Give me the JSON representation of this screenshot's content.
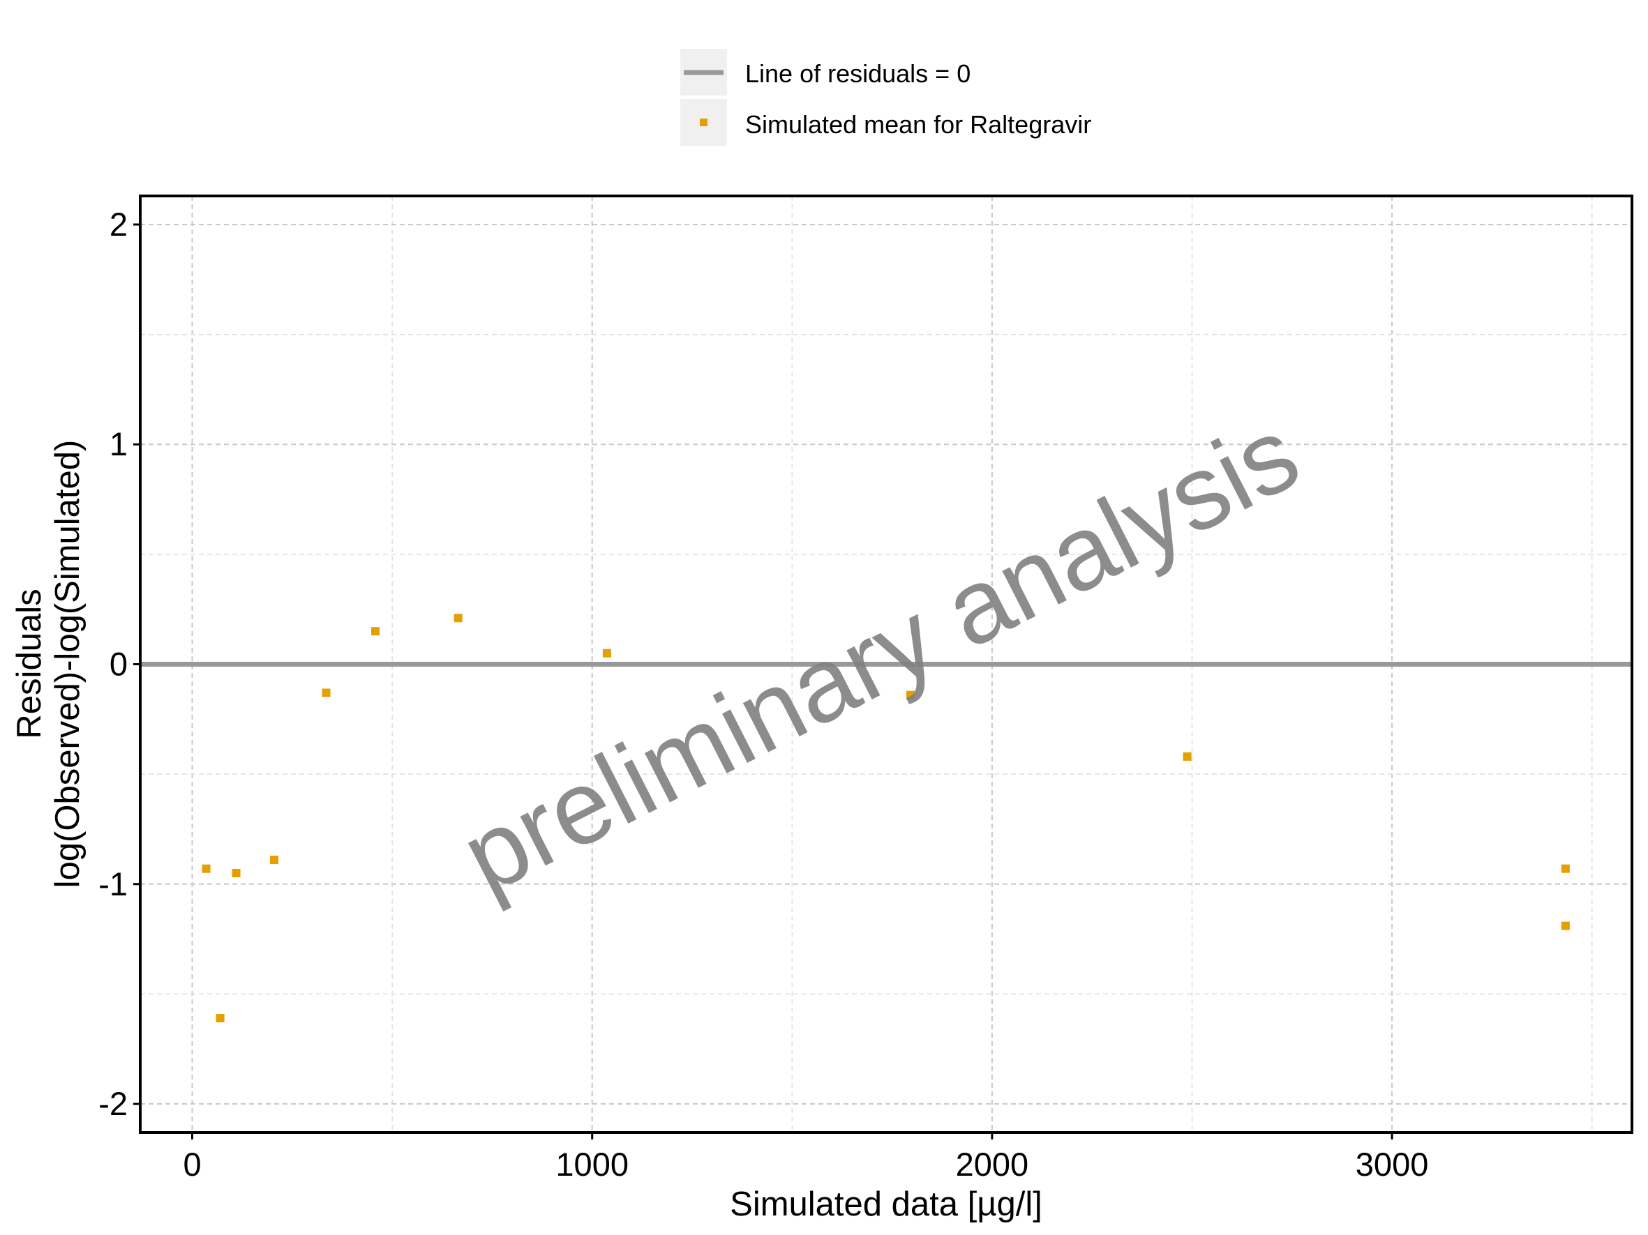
{
  "chart_data": {
    "type": "scatter",
    "title": "",
    "xlabel": "Simulated data [µg/l]",
    "ylabel_lines": [
      "Residuals",
      "log(Observed)-log(Simulated)"
    ],
    "xlim": [
      -130,
      3600
    ],
    "ylim": [
      -2.13,
      2.13
    ],
    "x_ticks": [
      0,
      1000,
      2000,
      3000
    ],
    "x_tick_labels": [
      "0",
      "1000",
      "2000",
      "3000"
    ],
    "y_ticks": [
      -2,
      -1,
      0,
      1,
      2
    ],
    "y_tick_labels": [
      "-2",
      "-1",
      "0",
      "1",
      "2"
    ],
    "grid": true,
    "legend_position": "top-center",
    "legend": [
      {
        "label": "Line of residuals = 0",
        "kind": "line",
        "color": "#999999"
      },
      {
        "label": "Simulated mean for Raltegravir",
        "kind": "point",
        "color": "#E69F00"
      }
    ],
    "reference_line": {
      "y": 0,
      "label": "Line of residuals = 0",
      "color": "#999999"
    },
    "series": [
      {
        "name": "Simulated mean for Raltegravir",
        "color": "#E69F00",
        "points": [
          {
            "x": 35,
            "y": -0.93
          },
          {
            "x": 70,
            "y": -1.61
          },
          {
            "x": 110,
            "y": -0.95
          },
          {
            "x": 205,
            "y": -0.89
          },
          {
            "x": 335,
            "y": -0.13
          },
          {
            "x": 458,
            "y": 0.15
          },
          {
            "x": 665,
            "y": 0.21
          },
          {
            "x": 1037,
            "y": 0.05
          },
          {
            "x": 1796,
            "y": -0.14
          },
          {
            "x": 2488,
            "y": -0.42
          },
          {
            "x": 3434,
            "y": -0.93
          },
          {
            "x": 3434,
            "y": -1.19
          }
        ]
      }
    ],
    "watermark": "preliminary analysis"
  }
}
